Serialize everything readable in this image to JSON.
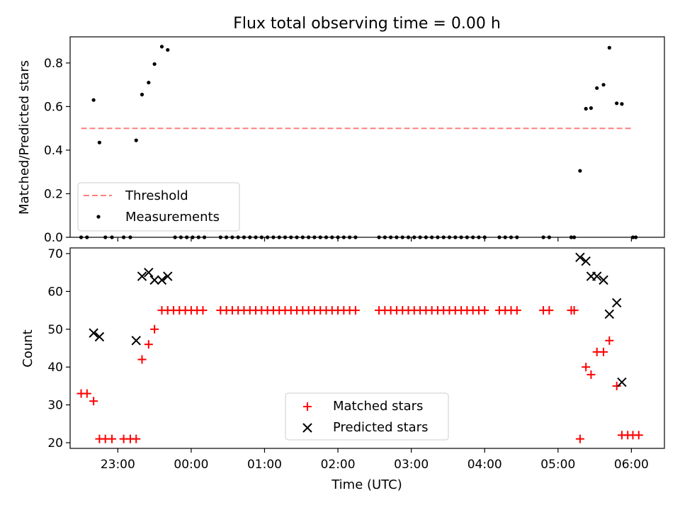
{
  "chart_data": [
    {
      "type": "scatter",
      "title": "Flux total observing time = 0.00 h",
      "xlabel": "",
      "ylabel": "Matched/Predicted stars",
      "xlim_hours": [
        22.35,
        30.45
      ],
      "ylim": [
        0.0,
        0.92
      ],
      "yticks": [
        0.0,
        0.2,
        0.4,
        0.6,
        0.8
      ],
      "ytick_labels": [
        "0.0",
        "0.2",
        "0.4",
        "0.6",
        "0.8"
      ],
      "grid": false,
      "legend_position": "lower-left",
      "threshold": {
        "name": "Threshold",
        "y": 0.5,
        "x_range": [
          22.5,
          30.0
        ],
        "color": "#ff7f7f",
        "style": "dashed"
      },
      "series": [
        {
          "name": "Measurements",
          "marker": "dot",
          "color": "#000000",
          "points": [
            {
              "x": 22.5,
              "y": 0.0
            },
            {
              "x": 22.58,
              "y": 0.0
            },
            {
              "x": 22.67,
              "y": 0.63
            },
            {
              "x": 22.75,
              "y": 0.435
            },
            {
              "x": 22.83,
              "y": 0.0
            },
            {
              "x": 22.92,
              "y": 0.0
            },
            {
              "x": 23.08,
              "y": 0.0
            },
            {
              "x": 23.17,
              "y": 0.0
            },
            {
              "x": 23.25,
              "y": 0.445
            },
            {
              "x": 23.33,
              "y": 0.655
            },
            {
              "x": 23.42,
              "y": 0.71
            },
            {
              "x": 23.5,
              "y": 0.795
            },
            {
              "x": 23.6,
              "y": 0.875
            },
            {
              "x": 23.68,
              "y": 0.86
            },
            {
              "x": 23.78,
              "y": 0.0
            },
            {
              "x": 23.86,
              "y": 0.0
            },
            {
              "x": 23.94,
              "y": 0.0
            },
            {
              "x": 24.02,
              "y": 0.0
            },
            {
              "x": 24.1,
              "y": 0.0
            },
            {
              "x": 24.18,
              "y": 0.0
            },
            {
              "x": 24.4,
              "y": 0.0
            },
            {
              "x": 24.48,
              "y": 0.0
            },
            {
              "x": 24.56,
              "y": 0.0
            },
            {
              "x": 24.64,
              "y": 0.0
            },
            {
              "x": 24.72,
              "y": 0.0
            },
            {
              "x": 24.8,
              "y": 0.0
            },
            {
              "x": 24.88,
              "y": 0.0
            },
            {
              "x": 24.96,
              "y": 0.0
            },
            {
              "x": 25.04,
              "y": 0.0
            },
            {
              "x": 25.12,
              "y": 0.0
            },
            {
              "x": 25.2,
              "y": 0.0
            },
            {
              "x": 25.28,
              "y": 0.0
            },
            {
              "x": 25.36,
              "y": 0.0
            },
            {
              "x": 25.44,
              "y": 0.0
            },
            {
              "x": 25.52,
              "y": 0.0
            },
            {
              "x": 25.6,
              "y": 0.0
            },
            {
              "x": 25.68,
              "y": 0.0
            },
            {
              "x": 25.76,
              "y": 0.0
            },
            {
              "x": 25.84,
              "y": 0.0
            },
            {
              "x": 25.92,
              "y": 0.0
            },
            {
              "x": 26.0,
              "y": 0.0
            },
            {
              "x": 26.08,
              "y": 0.0
            },
            {
              "x": 26.16,
              "y": 0.0
            },
            {
              "x": 26.24,
              "y": 0.0
            },
            {
              "x": 26.56,
              "y": 0.0
            },
            {
              "x": 26.64,
              "y": 0.0
            },
            {
              "x": 26.72,
              "y": 0.0
            },
            {
              "x": 26.8,
              "y": 0.0
            },
            {
              "x": 26.88,
              "y": 0.0
            },
            {
              "x": 26.96,
              "y": 0.0
            },
            {
              "x": 27.04,
              "y": 0.0
            },
            {
              "x": 27.12,
              "y": 0.0
            },
            {
              "x": 27.2,
              "y": 0.0
            },
            {
              "x": 27.28,
              "y": 0.0
            },
            {
              "x": 27.36,
              "y": 0.0
            },
            {
              "x": 27.44,
              "y": 0.0
            },
            {
              "x": 27.52,
              "y": 0.0
            },
            {
              "x": 27.6,
              "y": 0.0
            },
            {
              "x": 27.68,
              "y": 0.0
            },
            {
              "x": 27.76,
              "y": 0.0
            },
            {
              "x": 27.84,
              "y": 0.0
            },
            {
              "x": 27.92,
              "y": 0.0
            },
            {
              "x": 28.0,
              "y": 0.0
            },
            {
              "x": 28.2,
              "y": 0.0
            },
            {
              "x": 28.28,
              "y": 0.0
            },
            {
              "x": 28.36,
              "y": 0.0
            },
            {
              "x": 28.44,
              "y": 0.0
            },
            {
              "x": 28.8,
              "y": 0.0
            },
            {
              "x": 28.88,
              "y": 0.0
            },
            {
              "x": 29.18,
              "y": 0.0
            },
            {
              "x": 29.22,
              "y": 0.0
            },
            {
              "x": 29.3,
              "y": 0.305
            },
            {
              "x": 29.38,
              "y": 0.59
            },
            {
              "x": 29.45,
              "y": 0.593
            },
            {
              "x": 29.53,
              "y": 0.685
            },
            {
              "x": 29.62,
              "y": 0.7
            },
            {
              "x": 29.7,
              "y": 0.87
            },
            {
              "x": 29.8,
              "y": 0.615
            },
            {
              "x": 29.87,
              "y": 0.612
            },
            {
              "x": 30.02,
              "y": 0.0
            },
            {
              "x": 30.06,
              "y": 0.0
            }
          ]
        }
      ]
    },
    {
      "type": "scatter",
      "title": "",
      "xlabel": "Time (UTC)",
      "ylabel": "Count",
      "xlim_hours": [
        22.35,
        30.45
      ],
      "ylim": [
        18.5,
        71.5
      ],
      "yticks": [
        20,
        30,
        40,
        50,
        60,
        70
      ],
      "ytick_labels": [
        "20",
        "30",
        "40",
        "50",
        "60",
        "70"
      ],
      "xticks_hours": [
        23,
        24,
        25,
        26,
        27,
        28,
        29,
        30
      ],
      "xtick_labels": [
        "23:00",
        "00:00",
        "01:00",
        "02:00",
        "03:00",
        "04:00",
        "05:00",
        "06:00"
      ],
      "grid": false,
      "legend_position": "lower-center",
      "series": [
        {
          "name": "Matched stars",
          "marker": "plus",
          "color": "#ff0000",
          "points": [
            {
              "x": 22.5,
              "y": 33
            },
            {
              "x": 22.58,
              "y": 33
            },
            {
              "x": 22.67,
              "y": 31
            },
            {
              "x": 22.75,
              "y": 21
            },
            {
              "x": 22.83,
              "y": 21
            },
            {
              "x": 22.92,
              "y": 21
            },
            {
              "x": 23.08,
              "y": 21
            },
            {
              "x": 23.17,
              "y": 21
            },
            {
              "x": 23.25,
              "y": 21
            },
            {
              "x": 23.33,
              "y": 42
            },
            {
              "x": 23.42,
              "y": 46
            },
            {
              "x": 23.5,
              "y": 50
            },
            {
              "x": 23.6,
              "y": 55
            },
            {
              "x": 23.68,
              "y": 55
            },
            {
              "x": 23.76,
              "y": 55
            },
            {
              "x": 23.84,
              "y": 55
            },
            {
              "x": 23.92,
              "y": 55
            },
            {
              "x": 24.0,
              "y": 55
            },
            {
              "x": 24.08,
              "y": 55
            },
            {
              "x": 24.16,
              "y": 55
            },
            {
              "x": 24.4,
              "y": 55
            },
            {
              "x": 24.48,
              "y": 55
            },
            {
              "x": 24.56,
              "y": 55
            },
            {
              "x": 24.64,
              "y": 55
            },
            {
              "x": 24.72,
              "y": 55
            },
            {
              "x": 24.8,
              "y": 55
            },
            {
              "x": 24.88,
              "y": 55
            },
            {
              "x": 24.96,
              "y": 55
            },
            {
              "x": 25.04,
              "y": 55
            },
            {
              "x": 25.12,
              "y": 55
            },
            {
              "x": 25.2,
              "y": 55
            },
            {
              "x": 25.28,
              "y": 55
            },
            {
              "x": 25.36,
              "y": 55
            },
            {
              "x": 25.44,
              "y": 55
            },
            {
              "x": 25.52,
              "y": 55
            },
            {
              "x": 25.6,
              "y": 55
            },
            {
              "x": 25.68,
              "y": 55
            },
            {
              "x": 25.76,
              "y": 55
            },
            {
              "x": 25.84,
              "y": 55
            },
            {
              "x": 25.92,
              "y": 55
            },
            {
              "x": 26.0,
              "y": 55
            },
            {
              "x": 26.08,
              "y": 55
            },
            {
              "x": 26.16,
              "y": 55
            },
            {
              "x": 26.24,
              "y": 55
            },
            {
              "x": 26.56,
              "y": 55
            },
            {
              "x": 26.64,
              "y": 55
            },
            {
              "x": 26.72,
              "y": 55
            },
            {
              "x": 26.8,
              "y": 55
            },
            {
              "x": 26.88,
              "y": 55
            },
            {
              "x": 26.96,
              "y": 55
            },
            {
              "x": 27.04,
              "y": 55
            },
            {
              "x": 27.12,
              "y": 55
            },
            {
              "x": 27.2,
              "y": 55
            },
            {
              "x": 27.28,
              "y": 55
            },
            {
              "x": 27.36,
              "y": 55
            },
            {
              "x": 27.44,
              "y": 55
            },
            {
              "x": 27.52,
              "y": 55
            },
            {
              "x": 27.6,
              "y": 55
            },
            {
              "x": 27.68,
              "y": 55
            },
            {
              "x": 27.76,
              "y": 55
            },
            {
              "x": 27.84,
              "y": 55
            },
            {
              "x": 27.92,
              "y": 55
            },
            {
              "x": 28.0,
              "y": 55
            },
            {
              "x": 28.2,
              "y": 55
            },
            {
              "x": 28.28,
              "y": 55
            },
            {
              "x": 28.36,
              "y": 55
            },
            {
              "x": 28.44,
              "y": 55
            },
            {
              "x": 28.8,
              "y": 55
            },
            {
              "x": 28.88,
              "y": 55
            },
            {
              "x": 29.18,
              "y": 55
            },
            {
              "x": 29.22,
              "y": 55
            },
            {
              "x": 29.3,
              "y": 21
            },
            {
              "x": 29.38,
              "y": 40
            },
            {
              "x": 29.45,
              "y": 38
            },
            {
              "x": 29.53,
              "y": 44
            },
            {
              "x": 29.62,
              "y": 44
            },
            {
              "x": 29.7,
              "y": 47
            },
            {
              "x": 29.8,
              "y": 35
            },
            {
              "x": 29.87,
              "y": 22
            },
            {
              "x": 29.95,
              "y": 22
            },
            {
              "x": 30.02,
              "y": 22
            },
            {
              "x": 30.1,
              "y": 22
            }
          ]
        },
        {
          "name": "Predicted stars",
          "marker": "x",
          "color": "#000000",
          "points": [
            {
              "x": 22.67,
              "y": 49
            },
            {
              "x": 22.75,
              "y": 48
            },
            {
              "x": 23.25,
              "y": 47
            },
            {
              "x": 23.33,
              "y": 64
            },
            {
              "x": 23.42,
              "y": 65
            },
            {
              "x": 23.5,
              "y": 63
            },
            {
              "x": 23.6,
              "y": 63
            },
            {
              "x": 23.68,
              "y": 64
            },
            {
              "x": 29.3,
              "y": 69
            },
            {
              "x": 29.38,
              "y": 68
            },
            {
              "x": 29.45,
              "y": 64
            },
            {
              "x": 29.53,
              "y": 64
            },
            {
              "x": 29.62,
              "y": 63
            },
            {
              "x": 29.7,
              "y": 54
            },
            {
              "x": 29.8,
              "y": 57
            },
            {
              "x": 29.87,
              "y": 36
            }
          ]
        }
      ]
    }
  ]
}
